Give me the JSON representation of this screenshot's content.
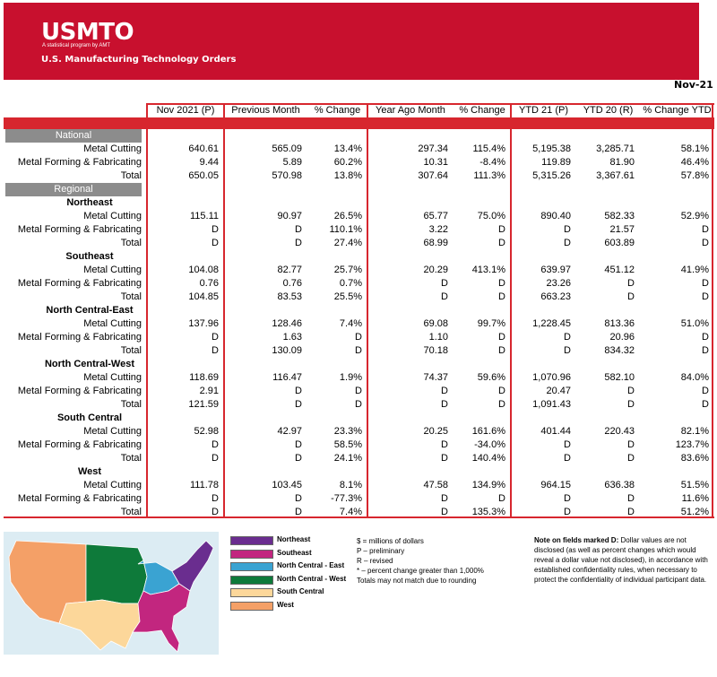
{
  "header": {
    "logo": "USMTO",
    "logo_tagline": "A statistical program by AMT",
    "title": "U.S. Manufacturing Technology Orders",
    "report_date": "Nov-21"
  },
  "columns": [
    "Nov 2021 (P)",
    "Previous Month",
    "% Change",
    "Year Ago Month",
    "% Change",
    "YTD 21 (P)",
    "YTD 20 (R)",
    "% Change YTD"
  ],
  "sections": {
    "national": "National",
    "regional": "Regional"
  },
  "national_rows": [
    {
      "label": "Metal Cutting",
      "cells": [
        "640.61",
        "565.09",
        "13.4%",
        "297.34",
        "115.4%",
        "5,195.38",
        "3,285.71",
        "58.1%"
      ]
    },
    {
      "label": "Metal Forming & Fabricating",
      "cells": [
        "9.44",
        "5.89",
        "60.2%",
        "10.31",
        "-8.4%",
        "119.89",
        "81.90",
        "46.4%"
      ]
    },
    {
      "label": "Total",
      "cells": [
        "650.05",
        "570.98",
        "13.8%",
        "307.64",
        "111.3%",
        "5,315.26",
        "3,367.61",
        "57.8%"
      ]
    }
  ],
  "regions": [
    {
      "name": "Northeast",
      "rows": [
        {
          "label": "Metal Cutting",
          "cells": [
            "115.11",
            "90.97",
            "26.5%",
            "65.77",
            "75.0%",
            "890.40",
            "582.33",
            "52.9%"
          ]
        },
        {
          "label": "Metal Forming & Fabricating",
          "cells": [
            "D",
            "D",
            "110.1%",
            "3.22",
            "D",
            "D",
            "21.57",
            "D"
          ]
        },
        {
          "label": "Total",
          "cells": [
            "D",
            "D",
            "27.4%",
            "68.99",
            "D",
            "D",
            "603.89",
            "D"
          ]
        }
      ]
    },
    {
      "name": "Southeast",
      "rows": [
        {
          "label": "Metal Cutting",
          "cells": [
            "104.08",
            "82.77",
            "25.7%",
            "20.29",
            "413.1%",
            "639.97",
            "451.12",
            "41.9%"
          ]
        },
        {
          "label": "Metal Forming & Fabricating",
          "cells": [
            "0.76",
            "0.76",
            "0.7%",
            "D",
            "D",
            "23.26",
            "D",
            "D"
          ]
        },
        {
          "label": "Total",
          "cells": [
            "104.85",
            "83.53",
            "25.5%",
            "D",
            "D",
            "663.23",
            "D",
            "D"
          ]
        }
      ]
    },
    {
      "name": "North Central-East",
      "rows": [
        {
          "label": "Metal Cutting",
          "cells": [
            "137.96",
            "128.46",
            "7.4%",
            "69.08",
            "99.7%",
            "1,228.45",
            "813.36",
            "51.0%"
          ]
        },
        {
          "label": "Metal Forming & Fabricating",
          "cells": [
            "D",
            "1.63",
            "D",
            "1.10",
            "D",
            "D",
            "20.96",
            "D"
          ]
        },
        {
          "label": "Total",
          "cells": [
            "D",
            "130.09",
            "D",
            "70.18",
            "D",
            "D",
            "834.32",
            "D"
          ]
        }
      ]
    },
    {
      "name": "North Central-West",
      "rows": [
        {
          "label": "Metal Cutting",
          "cells": [
            "118.69",
            "116.47",
            "1.9%",
            "74.37",
            "59.6%",
            "1,070.96",
            "582.10",
            "84.0%"
          ]
        },
        {
          "label": "Metal Forming & Fabricating",
          "cells": [
            "2.91",
            "D",
            "D",
            "D",
            "D",
            "20.47",
            "D",
            "D"
          ]
        },
        {
          "label": "Total",
          "cells": [
            "121.59",
            "D",
            "D",
            "D",
            "D",
            "1,091.43",
            "D",
            "D"
          ]
        }
      ]
    },
    {
      "name": "South Central",
      "rows": [
        {
          "label": "Metal Cutting",
          "cells": [
            "52.98",
            "42.97",
            "23.3%",
            "20.25",
            "161.6%",
            "401.44",
            "220.43",
            "82.1%"
          ]
        },
        {
          "label": "Metal Forming & Fabricating",
          "cells": [
            "D",
            "D",
            "58.5%",
            "D",
            "-34.0%",
            "D",
            "D",
            "123.7%"
          ]
        },
        {
          "label": "Total",
          "cells": [
            "D",
            "D",
            "24.1%",
            "D",
            "140.4%",
            "D",
            "D",
            "83.6%"
          ]
        }
      ]
    },
    {
      "name": "West",
      "rows": [
        {
          "label": "Metal Cutting",
          "cells": [
            "111.78",
            "103.45",
            "8.1%",
            "47.58",
            "134.9%",
            "964.15",
            "636.38",
            "51.5%"
          ]
        },
        {
          "label": "Metal Forming & Fabricating",
          "cells": [
            "D",
            "D",
            "-77.3%",
            "D",
            "D",
            "D",
            "D",
            "11.6%"
          ]
        },
        {
          "label": "Total",
          "cells": [
            "D",
            "D",
            "7.4%",
            "D",
            "135.3%",
            "D",
            "D",
            "51.2%"
          ]
        }
      ]
    }
  ],
  "legend": [
    {
      "label": "Northeast",
      "color": "#6a2d8f"
    },
    {
      "label": "Southeast",
      "color": "#c2267f"
    },
    {
      "label": "North Central - East",
      "color": "#3aa3d2"
    },
    {
      "label": "North Central - West",
      "color": "#0e7a3a"
    },
    {
      "label": "South Central",
      "color": "#fcd79a"
    },
    {
      "label": "West",
      "color": "#f4a067"
    }
  ],
  "notes": [
    "$ = millions of dollars",
    "P – preliminary",
    "R – revised",
    "* – percent change greater than 1,000%",
    "Totals may not match due to rounding"
  ],
  "confidentiality": {
    "lead": "Note on fields marked D:",
    "text": "Dollar values are not disclosed (as well as percent changes which would reveal a dollar value not disclosed), in accordance with established confidentiality rules, when necessary to protect the confidentiality of individual participant data."
  },
  "colors": {
    "accent": "#c8102e",
    "section": "#8c8c8c",
    "map_bg": "#dcecf3"
  }
}
